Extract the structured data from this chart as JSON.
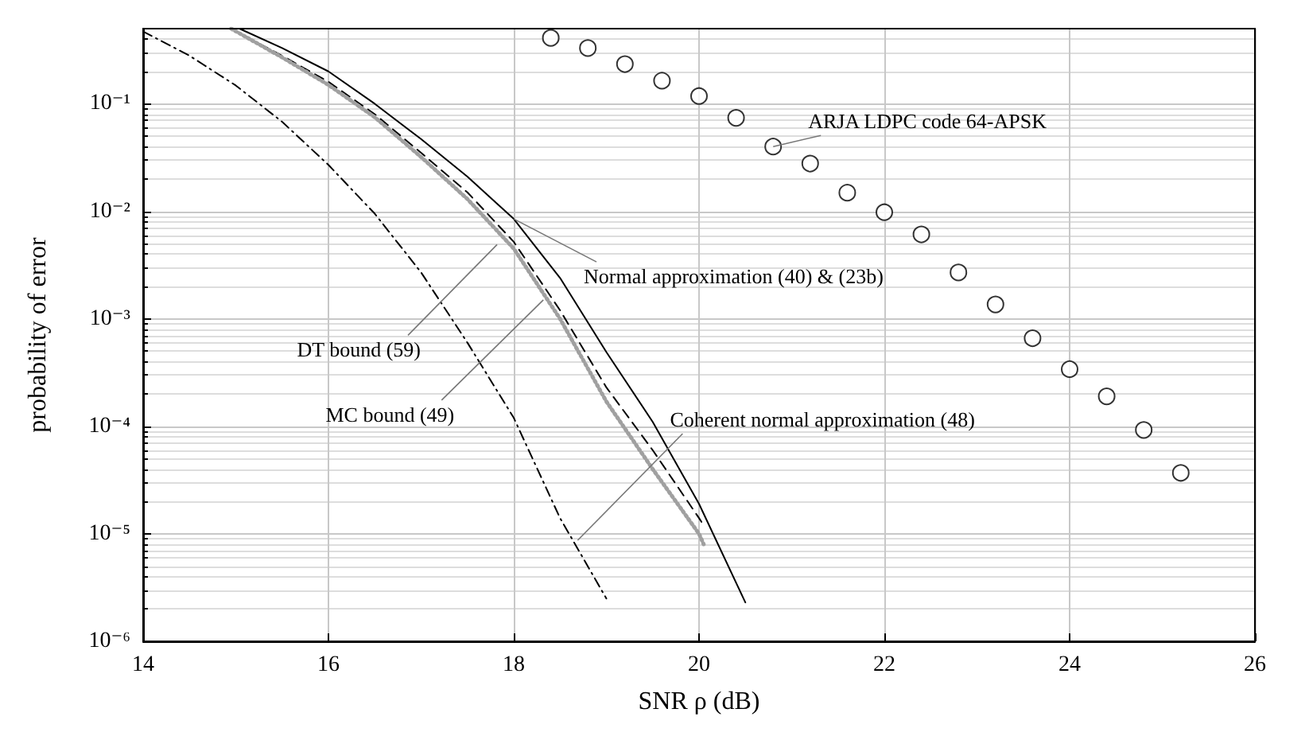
{
  "chart_data": {
    "type": "line",
    "xlabel": "SNR ρ (dB)",
    "ylabel": "probability of error",
    "xlim": [
      14,
      26
    ],
    "xticks": [
      14,
      16,
      18,
      20,
      22,
      24,
      26
    ],
    "ylim": [
      1e-06,
      0.5
    ],
    "log": "y",
    "yticks": [
      {
        "value": 1e-06,
        "label": "10⁻⁶"
      },
      {
        "value": 1e-05,
        "label": "10⁻⁵"
      },
      {
        "value": 0.0001,
        "label": "10⁻⁴"
      },
      {
        "value": 0.001,
        "label": "10⁻³"
      },
      {
        "value": 0.01,
        "label": "10⁻²"
      },
      {
        "value": 0.1,
        "label": "10⁻¹"
      }
    ],
    "grid": true,
    "series": [
      {
        "color": "#000000",
        "line_style": "solid",
        "marker": "none",
        "x": [
          15.04,
          15.5,
          16,
          16.5,
          17,
          17.5,
          18,
          18.5,
          19,
          19.5,
          20,
          20.5
        ],
        "values": [
          0.5,
          0.33,
          0.2,
          0.1,
          0.047,
          0.021,
          0.0085,
          0.0024,
          0.00049,
          0.00011,
          1.9e-05,
          2.3e-06
        ]
      },
      {
        "color": "#000000",
        "line_style": "dashed",
        "marker": "none",
        "x": [
          14.95,
          15.5,
          16,
          16.5,
          17,
          17.5,
          18,
          18.5,
          19,
          19.5,
          20,
          20.05
        ],
        "values": [
          0.5,
          0.28,
          0.16,
          0.08,
          0.035,
          0.015,
          0.0052,
          0.0012,
          0.00023,
          6e-05,
          1.4e-05,
          1.2e-05
        ]
      },
      {
        "color": "#a0a0a0",
        "line_style": "dotted",
        "marker": "none",
        "x": [
          14.95,
          15.5,
          16,
          16.5,
          17,
          17.5,
          18,
          18.5,
          19,
          19.5,
          20,
          20.05
        ],
        "values": [
          0.5,
          0.27,
          0.15,
          0.075,
          0.032,
          0.013,
          0.0045,
          0.001,
          0.00017,
          4e-05,
          1e-05,
          8e-06
        ]
      },
      {
        "color": "#000000",
        "line_style": "dashdot",
        "marker": "none",
        "x": [
          14,
          14.5,
          15,
          15.5,
          16,
          16.5,
          17,
          17.5,
          18,
          18.5,
          19
        ],
        "values": [
          0.47,
          0.28,
          0.148,
          0.068,
          0.027,
          0.0095,
          0.0027,
          0.0006,
          0.00012,
          1.4e-05,
          2.5e-06
        ]
      },
      {
        "type": "scatter",
        "color": "#000000",
        "marker": "circle",
        "x": [
          18.4,
          18.8,
          19.2,
          19.6,
          20.0,
          20.4,
          20.8,
          21.2,
          21.6,
          22.0,
          22.4,
          22.8,
          23.2,
          23.6,
          24.0,
          24.4,
          24.8,
          25.2
        ],
        "values": [
          0.41,
          0.33,
          0.234,
          0.164,
          0.118,
          0.074,
          0.04,
          0.0278,
          0.0149,
          0.0098,
          0.0061,
          0.0027,
          0.00136,
          0.00066,
          0.00034,
          0.00019,
          9.25e-05,
          3.69e-05
        ]
      }
    ],
    "annotations": [
      {
        "text": "ARJA LDPC code 64-APSK",
        "x": 20.8,
        "y": 0.04
      },
      {
        "text": "Normal approximation (40) & (23b)",
        "x": 18,
        "y": 0.0085
      },
      {
        "text": "DT bound (59)",
        "x": 17.82,
        "y": 0.0049
      },
      {
        "text": "MC bound (49)",
        "x": 18.32,
        "y": 0.0015
      },
      {
        "text": "Coherent normal approximation (48)",
        "x": 18.69,
        "y": 8.7e-06
      }
    ]
  }
}
